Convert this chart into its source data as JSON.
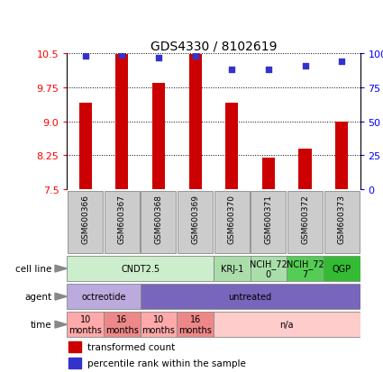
{
  "title": "GDS4330 / 8102619",
  "samples": [
    "GSM600366",
    "GSM600367",
    "GSM600368",
    "GSM600369",
    "GSM600370",
    "GSM600371",
    "GSM600372",
    "GSM600373"
  ],
  "bar_values": [
    9.4,
    10.49,
    9.85,
    10.49,
    9.4,
    8.2,
    8.4,
    9.0
  ],
  "dot_values": [
    98,
    99,
    97,
    98,
    88,
    88,
    91,
    94
  ],
  "ylim": [
    7.5,
    10.5
  ],
  "yticks_left": [
    7.5,
    8.25,
    9.0,
    9.75,
    10.5
  ],
  "yticks_right": [
    0,
    25,
    50,
    75,
    100
  ],
  "bar_color": "#cc0000",
  "dot_color": "#3333cc",
  "cell_line_row": {
    "spans": [
      {
        "label": "CNDT2.5",
        "start": 0,
        "end": 4,
        "color": "#cceecc"
      },
      {
        "label": "KRJ-1",
        "start": 4,
        "end": 5,
        "color": "#aaddaa"
      },
      {
        "label": "NCIH_72\n0",
        "start": 5,
        "end": 6,
        "color": "#aaddaa"
      },
      {
        "label": "NCIH_72\n7",
        "start": 6,
        "end": 7,
        "color": "#55cc55"
      },
      {
        "label": "QGP",
        "start": 7,
        "end": 8,
        "color": "#33bb33"
      }
    ]
  },
  "agent_row": {
    "spans": [
      {
        "label": "octreotide",
        "start": 0,
        "end": 2,
        "color": "#bbaadd"
      },
      {
        "label": "untreated",
        "start": 2,
        "end": 8,
        "color": "#7766bb"
      }
    ]
  },
  "time_row": {
    "spans": [
      {
        "label": "10\nmonths",
        "start": 0,
        "end": 1,
        "color": "#ffaaaa"
      },
      {
        "label": "16\nmonths",
        "start": 1,
        "end": 2,
        "color": "#ee8888"
      },
      {
        "label": "10\nmonths",
        "start": 2,
        "end": 3,
        "color": "#ffaaaa"
      },
      {
        "label": "16\nmonths",
        "start": 3,
        "end": 4,
        "color": "#ee8888"
      },
      {
        "label": "n/a",
        "start": 4,
        "end": 8,
        "color": "#ffcccc"
      }
    ]
  },
  "row_labels": [
    "cell line",
    "agent",
    "time"
  ],
  "legend_bar_label": "transformed count",
  "legend_dot_label": "percentile rank within the sample",
  "sample_box_color": "#cccccc",
  "chart_bg": "#ffffff"
}
